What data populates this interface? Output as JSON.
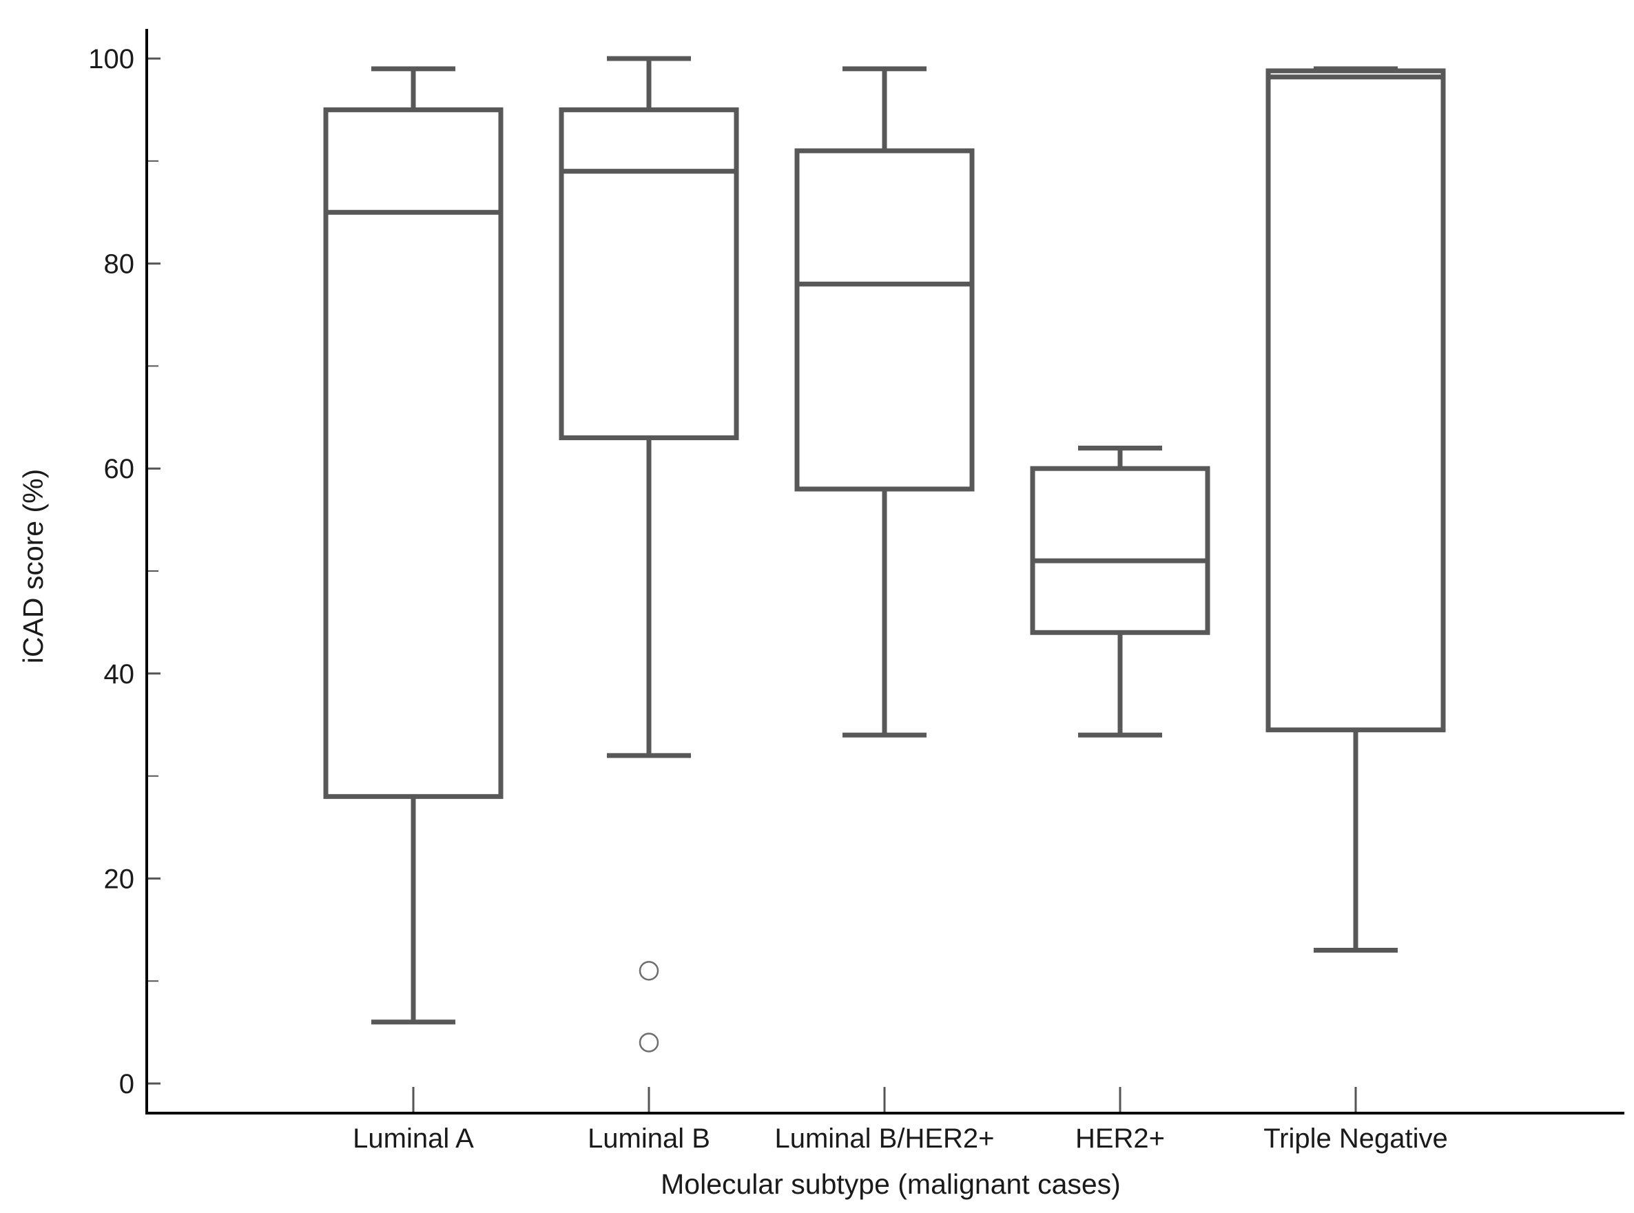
{
  "chart_data": {
    "type": "boxplot",
    "title": "",
    "xlabel": "Molecular subtype (malignant cases)",
    "ylabel": "iCAD score (%)",
    "ylim": [
      0,
      100
    ],
    "yticks_major": [
      0,
      20,
      40,
      60,
      80,
      100
    ],
    "yticks_minor": [
      10,
      30,
      50,
      70,
      90
    ],
    "grid": false,
    "categories": [
      "Luminal A",
      "Luminal B",
      "Luminal B/HER2+",
      "HER2+",
      "Triple Negative"
    ],
    "series": [
      {
        "category": "Luminal A",
        "whisker_low": 6,
        "q1": 28,
        "median": 85,
        "q3": 95,
        "whisker_high": 99,
        "outliers": []
      },
      {
        "category": "Luminal B",
        "whisker_low": 32,
        "q1": 63,
        "median": 89,
        "q3": 95,
        "whisker_high": 100,
        "outliers": [
          11,
          4
        ]
      },
      {
        "category": "Luminal B/HER2+",
        "whisker_low": 34,
        "q1": 58,
        "median": 78,
        "q3": 91,
        "whisker_high": 99,
        "outliers": []
      },
      {
        "category": "HER2+",
        "whisker_low": 34,
        "q1": 44,
        "median": 51,
        "q3": 60,
        "whisker_high": 62,
        "outliers": []
      },
      {
        "category": "Triple Negative",
        "whisker_low": 13,
        "q1": 34.5,
        "median": 98.2,
        "q3": 98.8,
        "whisker_high": 99,
        "outliers": []
      }
    ],
    "colors": {
      "box": "#585858",
      "axis": "#000000",
      "outlier_fill": "#ffffff"
    }
  }
}
